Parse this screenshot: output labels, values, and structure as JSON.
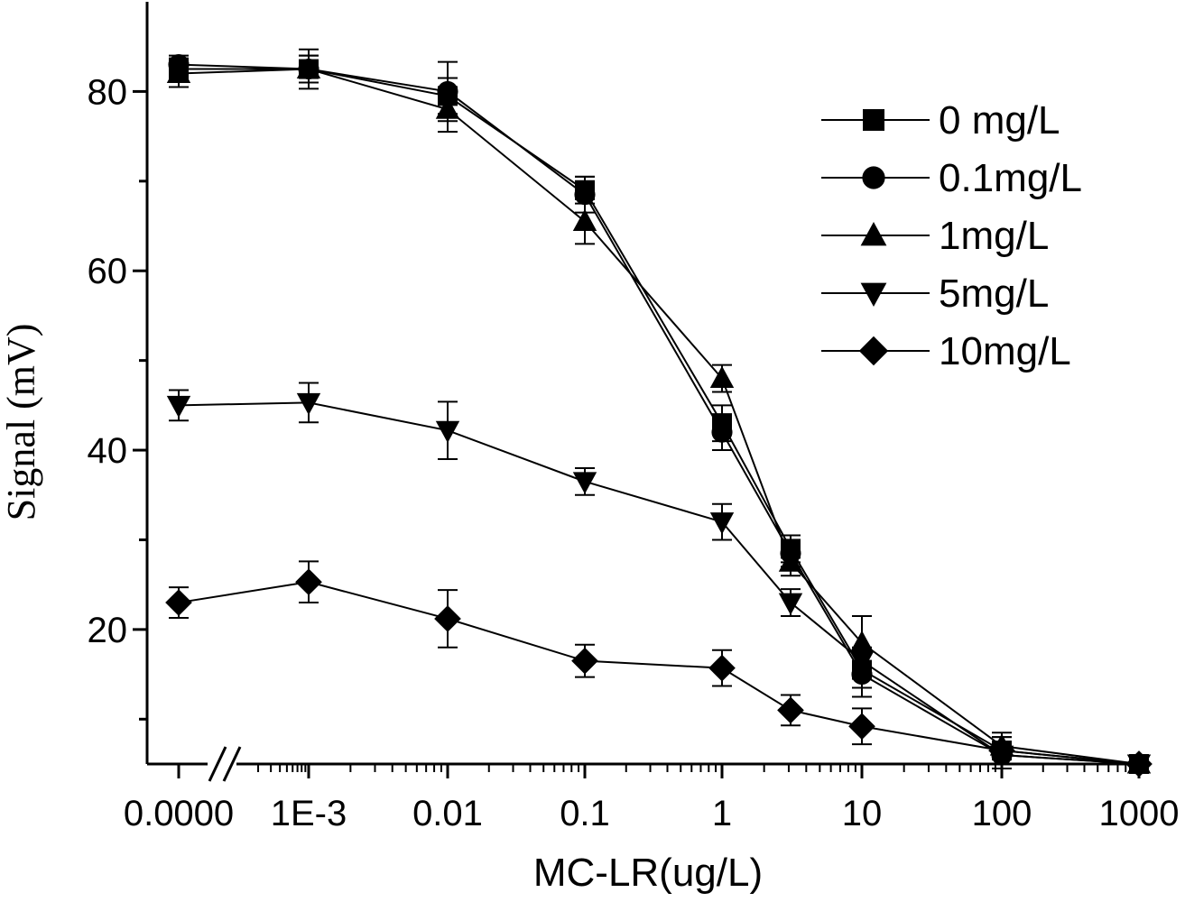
{
  "chart_data": {
    "type": "line",
    "title": "",
    "xlabel": "MC-LR(ug/L)",
    "ylabel": "Signal (mV)",
    "x_scale": "log with axis break",
    "categories": [
      "0.0000",
      "1E-3",
      "0.01",
      "0.1",
      "1",
      "3",
      "10",
      "100",
      "1000"
    ],
    "x_tick_labels": [
      "0.0000",
      "1E-3",
      "0.01",
      "0.1",
      "1",
      "10",
      "100",
      "1000"
    ],
    "y_ticks": [
      20,
      40,
      60,
      80
    ],
    "ylim": [
      5,
      90
    ],
    "legend_position": "top-right",
    "series": [
      {
        "name": "0 mg/L",
        "marker": "square",
        "values": [
          82.5,
          82.5,
          79.5,
          69.0,
          43.0,
          29.0,
          15.5,
          6.5,
          5.0
        ],
        "errors": [
          1.2,
          2.2,
          2.0,
          1.5,
          2.0,
          1.5,
          2.0,
          1.5,
          0.0
        ]
      },
      {
        "name": "0.1mg/L",
        "marker": "circle",
        "values": [
          83.0,
          82.5,
          80.0,
          68.5,
          42.0,
          28.5,
          15.0,
          6.0,
          5.0
        ],
        "errors": [
          1.0,
          1.5,
          3.3,
          2.0,
          2.0,
          1.5,
          2.5,
          1.5,
          0.0
        ]
      },
      {
        "name": "1mg/L",
        "marker": "triangle-up",
        "values": [
          82.0,
          82.5,
          78.0,
          65.5,
          48.0,
          27.5,
          18.5,
          7.0,
          5.0
        ],
        "errors": [
          1.5,
          1.5,
          2.5,
          2.5,
          1.5,
          1.5,
          3.0,
          1.5,
          0.0
        ]
      },
      {
        "name": "5mg/L",
        "marker": "triangle-down",
        "values": [
          45.0,
          45.3,
          42.2,
          36.5,
          32.0,
          23.0,
          16.5,
          6.0,
          5.0
        ],
        "errors": [
          1.7,
          2.2,
          3.2,
          1.5,
          2.0,
          1.5,
          1.5,
          1.5,
          0.0
        ]
      },
      {
        "name": "10mg/L",
        "marker": "diamond",
        "values": [
          23.0,
          25.3,
          21.2,
          16.5,
          15.7,
          11.0,
          9.2,
          6.5,
          5.0
        ],
        "errors": [
          1.7,
          2.3,
          3.2,
          1.8,
          2.0,
          1.7,
          2.0,
          1.5,
          0.0
        ]
      }
    ]
  }
}
